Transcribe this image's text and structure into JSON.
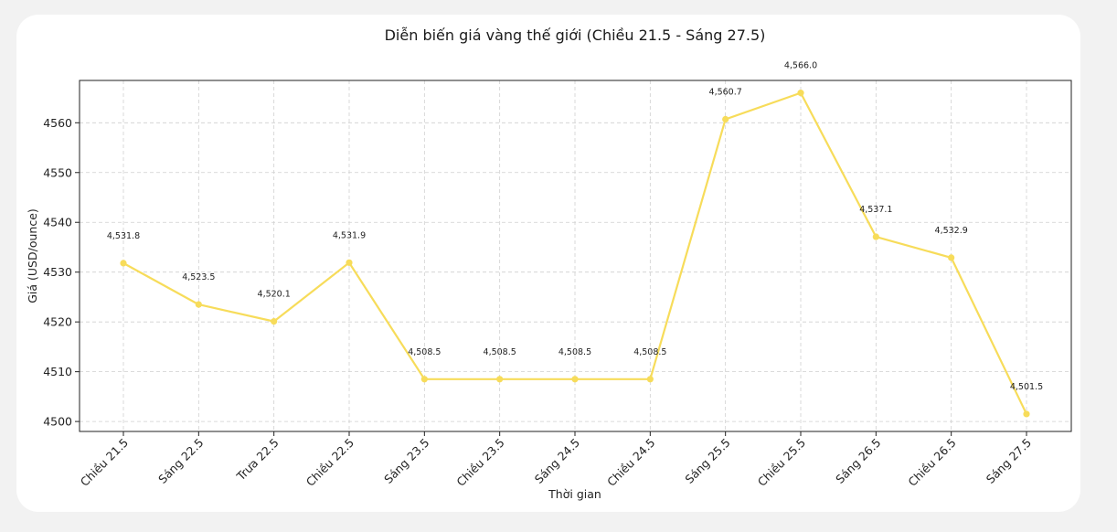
{
  "chart_data": {
    "type": "line",
    "title": "Diễn biến giá vàng thế giới (Chiều 21.5 - Sáng 27.5)",
    "xlabel": "Thời gian",
    "ylabel": "Giá (USD/ounce)",
    "categories": [
      "Chiều 21.5",
      "Sáng 22.5",
      "Trưa 22.5",
      "Chiều 22.5",
      "Sáng 23.5",
      "Chiều 23.5",
      "Sáng 24.5",
      "Chiều 24.5",
      "Sáng 25.5",
      "Chiều 25.5",
      "Sáng 26.5",
      "Chiều 26.5",
      "Sáng 27.5"
    ],
    "series": [
      {
        "values": [
          4531.8,
          4523.5,
          4520.1,
          4531.9,
          4508.5,
          4508.5,
          4508.5,
          4508.5,
          4560.7,
          4566.0,
          4537.1,
          4532.9,
          4501.5
        ],
        "color": "#f7dc5a"
      }
    ],
    "data_labels": [
      "4,531.8",
      "4,523.5",
      "4,520.1",
      "4,531.9",
      "4,508.5",
      "4,508.5",
      "4,508.5",
      "4,508.5",
      "4,560.7",
      "4,566.0",
      "4,537.1",
      "4,532.9",
      "4,501.5"
    ],
    "yticks": [
      4500,
      4510,
      4520,
      4530,
      4540,
      4550,
      4560
    ],
    "ylim": [
      4498,
      4568.5
    ],
    "grid": true,
    "legend": "none"
  }
}
